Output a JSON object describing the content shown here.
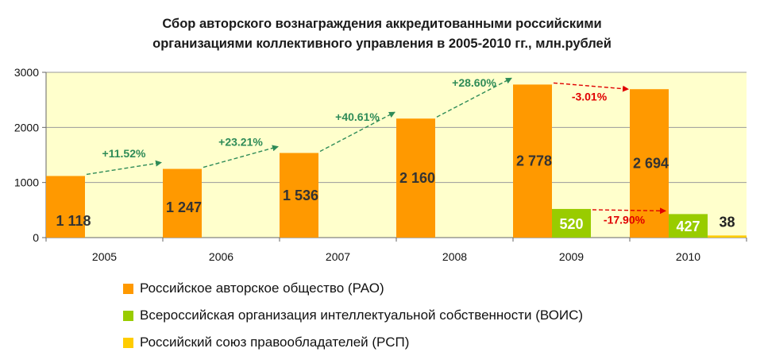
{
  "chart_data": {
    "type": "bar",
    "title": [
      "Сбор авторского вознаграждения аккредитованными российскими",
      "организациями коллективного управления в 2005-2010 гг., млн.рублей"
    ],
    "categories": [
      "2005",
      "2006",
      "2007",
      "2008",
      "2009",
      "2010"
    ],
    "series": [
      {
        "name": "Российское авторское общество (РАО)",
        "color": "#FF9900",
        "values": [
          1118,
          1247,
          1536,
          2160,
          2778,
          2694
        ],
        "labels": [
          "1 118",
          "1 247",
          "1 536",
          "2 160",
          "2 778",
          "2 694"
        ]
      },
      {
        "name": "Всероссийская организация интеллектуальной собственности (ВОИС)",
        "color": "#99CC00",
        "values": [
          null,
          null,
          null,
          null,
          520,
          427
        ],
        "labels": [
          "",
          "",
          "",
          "",
          "520",
          "427"
        ]
      },
      {
        "name": "Российский союз правообладателей (РСП)",
        "color": "#FFCC00",
        "values": [
          null,
          null,
          null,
          null,
          null,
          38
        ],
        "labels": [
          "",
          "",
          "",
          "",
          "",
          "38"
        ]
      }
    ],
    "yticks": [
      0,
      1000,
      2000,
      3000
    ],
    "ylim": [
      0,
      3000
    ],
    "grid": true,
    "plot_background": "#FFFFCC",
    "legend_position": "bottom",
    "annotations": [
      {
        "text": "+11.52%",
        "color": "#2E8B57"
      },
      {
        "text": "+23.21%",
        "color": "#2E8B57"
      },
      {
        "text": "+40.61%",
        "color": "#2E8B57"
      },
      {
        "text": "+28.60%",
        "color": "#2E8B57"
      },
      {
        "text": "-3.01%",
        "color": "#E00000"
      },
      {
        "text": "-17.90%",
        "color": "#E00000"
      }
    ]
  }
}
